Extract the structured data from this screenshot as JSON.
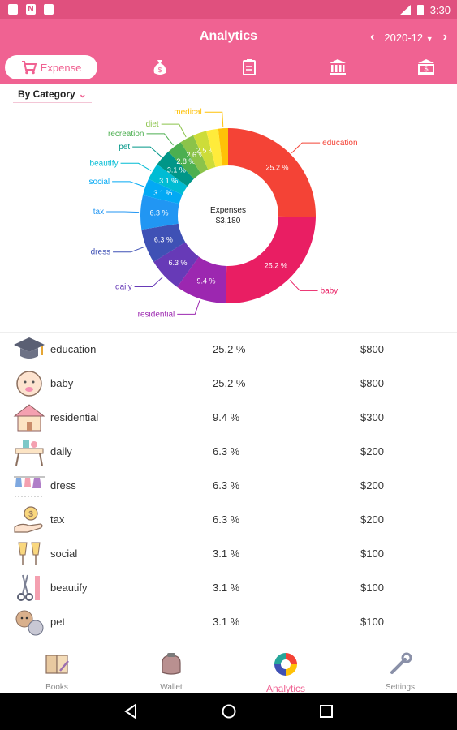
{
  "status_bar": {
    "time": "3:30",
    "left_icons": [
      "sim-icon",
      "n-icon",
      "image-icon"
    ]
  },
  "header": {
    "title": "Analytics",
    "month": "2020-12",
    "prev_icon": "chevron-left-icon",
    "next_icon": "chevron-right-icon"
  },
  "tabs": {
    "expense_label": "Expense",
    "items": [
      {
        "icon": "cart-icon",
        "label": "Expense"
      },
      {
        "icon": "money-bag-icon"
      },
      {
        "icon": "clipboard-icon"
      },
      {
        "icon": "bank-icon"
      },
      {
        "icon": "bank-dollar-icon"
      }
    ]
  },
  "filter": {
    "label": "By Category"
  },
  "colors": {
    "accent": "#f06292",
    "status": "#e0507e"
  },
  "chart_data": {
    "type": "pie",
    "center_label": "Expenses",
    "total": "$3,180",
    "slices": [
      {
        "label": "education",
        "value": 25.2,
        "text": "25.2 %",
        "color": "#f44336"
      },
      {
        "label": "baby",
        "value": 25.2,
        "text": "25.2 %",
        "color": "#e91e63"
      },
      {
        "label": "residential",
        "value": 9.4,
        "text": "9.4 %",
        "color": "#9c27b0"
      },
      {
        "label": "daily",
        "value": 6.3,
        "text": "6.3 %",
        "color": "#673ab7"
      },
      {
        "label": "dress",
        "value": 6.3,
        "text": "6.3 %",
        "color": "#3f51b5"
      },
      {
        "label": "tax",
        "value": 6.3,
        "text": "6.3 %",
        "color": "#2196f3"
      },
      {
        "label": "social",
        "value": 3.1,
        "text": "3.1 %",
        "color": "#03a9f4"
      },
      {
        "label": "beautify",
        "value": 3.1,
        "text": "3.1 %",
        "color": "#00bcd4"
      },
      {
        "label": "pet",
        "value": 3.1,
        "text": "3.1 %",
        "color": "#009688"
      },
      {
        "label": "recreation",
        "value": 2.8,
        "text": "2.8 %",
        "color": "#4caf50"
      },
      {
        "label": "diet",
        "value": 2.6,
        "text": "2.6 %",
        "color": "#8bc34a"
      },
      {
        "label": "",
        "value": 2.5,
        "text": "2.5 %",
        "color": "#cddc39"
      },
      {
        "label": "",
        "value": 2.2,
        "text": "",
        "color": "#ffeb3b"
      },
      {
        "label": "medical",
        "value": 1.8,
        "text": "",
        "color": "#ffc107"
      }
    ]
  },
  "rows": [
    {
      "icon": "graduation-cap-icon",
      "name": "education",
      "percent": "25.2 %",
      "amount": "$800"
    },
    {
      "icon": "baby-icon",
      "name": "baby",
      "percent": "25.2 %",
      "amount": "$800"
    },
    {
      "icon": "house-icon",
      "name": "residential",
      "percent": "9.4 %",
      "amount": "$300"
    },
    {
      "icon": "table-icon",
      "name": "daily",
      "percent": "6.3 %",
      "amount": "$200"
    },
    {
      "icon": "clothes-icon",
      "name": "dress",
      "percent": "6.3 %",
      "amount": "$200"
    },
    {
      "icon": "coin-hand-icon",
      "name": "tax",
      "percent": "6.3 %",
      "amount": "$200"
    },
    {
      "icon": "cheers-icon",
      "name": "social",
      "percent": "3.1 %",
      "amount": "$100"
    },
    {
      "icon": "scissors-comb-icon",
      "name": "beautify",
      "percent": "3.1 %",
      "amount": "$100"
    },
    {
      "icon": "pets-icon",
      "name": "pet",
      "percent": "3.1 %",
      "amount": "$100"
    }
  ],
  "bottom_nav": [
    {
      "icon": "book-icon",
      "label": "Books"
    },
    {
      "icon": "wallet-icon",
      "label": "Wallet"
    },
    {
      "icon": "analytics-icon",
      "label": "Analytics",
      "active": true
    },
    {
      "icon": "wrench-icon",
      "label": "Settings"
    }
  ]
}
